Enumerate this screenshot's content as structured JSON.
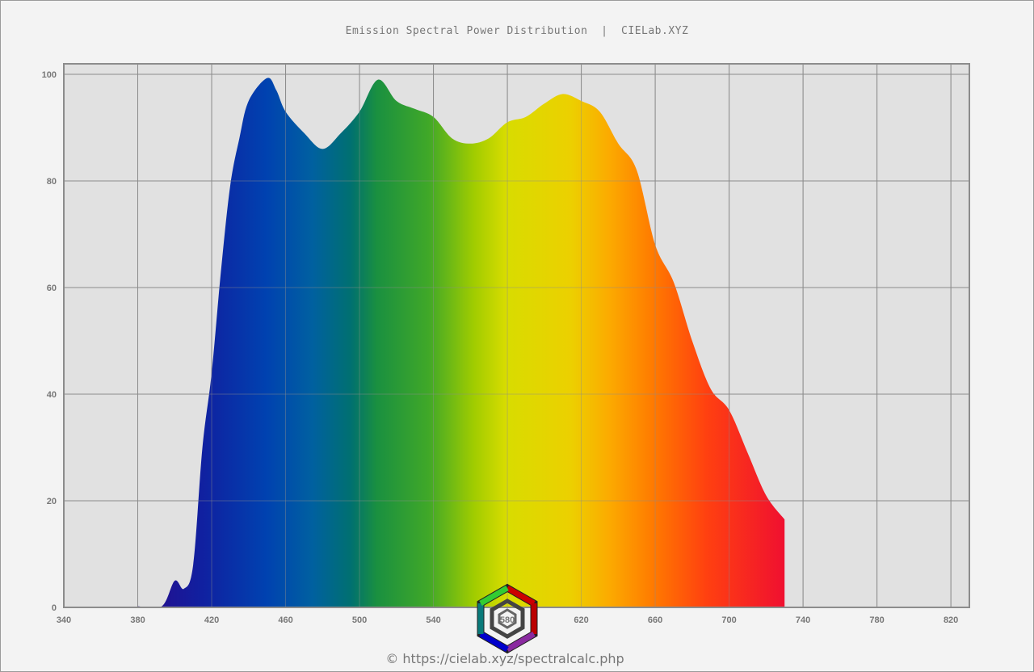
{
  "chart_data": {
    "type": "area",
    "title": "Emission Spectral Power Distribution  |  CIELab.XYZ",
    "xlabel": "",
    "ylabel": "",
    "xlim": [
      340,
      830
    ],
    "ylim": [
      0,
      100
    ],
    "xticks": [
      340,
      380,
      420,
      460,
      500,
      540,
      580,
      620,
      660,
      700,
      740,
      780,
      820
    ],
    "yticks": [
      0,
      20,
      40,
      60,
      80,
      100
    ],
    "grid": true,
    "fill": "visible-spectrum-gradient",
    "x": [
      380,
      393,
      400,
      405,
      410,
      415,
      420,
      425,
      430,
      435,
      440,
      450,
      455,
      460,
      470,
      480,
      490,
      500,
      510,
      520,
      530,
      540,
      550,
      560,
      570,
      580,
      590,
      600,
      610,
      620,
      630,
      640,
      650,
      660,
      670,
      680,
      690,
      700,
      710,
      720,
      730
    ],
    "y": [
      0.2,
      0.2,
      5,
      3.5,
      8,
      30,
      44,
      63,
      79,
      88,
      95,
      99.3,
      97,
      93,
      89,
      86,
      89,
      93,
      99,
      95,
      93.5,
      92,
      88,
      87,
      88,
      91,
      92,
      94.5,
      96.3,
      95,
      93,
      87,
      82,
      68,
      61,
      50,
      41,
      37,
      29,
      21,
      16.5
    ]
  },
  "credit": "© https://cielab.xyz/spectralcalc.php",
  "logo_text": "580",
  "colors": {
    "background": "#f3f3f3",
    "plot_bg": "#e1e1e1",
    "grid": "#8c8c8c",
    "text": "#777777"
  }
}
